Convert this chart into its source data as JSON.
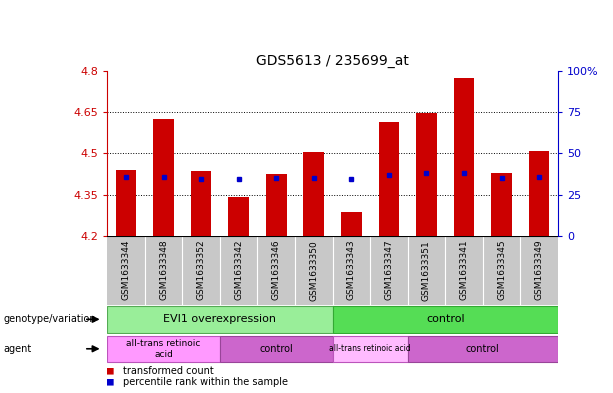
{
  "title": "GDS5613 / 235699_at",
  "samples": [
    "GSM1633344",
    "GSM1633348",
    "GSM1633352",
    "GSM1633342",
    "GSM1633346",
    "GSM1633350",
    "GSM1633343",
    "GSM1633347",
    "GSM1633351",
    "GSM1633341",
    "GSM1633345",
    "GSM1633349"
  ],
  "bar_values": [
    4.44,
    4.625,
    4.435,
    4.34,
    4.425,
    4.505,
    4.285,
    4.615,
    4.645,
    4.775,
    4.43,
    4.51
  ],
  "blue_dot_values": [
    4.415,
    4.415,
    4.405,
    4.405,
    4.41,
    4.41,
    4.405,
    4.42,
    4.43,
    4.43,
    4.41,
    4.415
  ],
  "ymin": 4.2,
  "ymax": 4.8,
  "yticks": [
    4.2,
    4.35,
    4.5,
    4.65,
    4.8
  ],
  "ytick_labels": [
    "4.2",
    "4.35",
    "4.5",
    "4.65",
    "4.8"
  ],
  "y2ticks": [
    0,
    25,
    50,
    75,
    100
  ],
  "y2tick_labels": [
    "0",
    "25",
    "50",
    "75",
    "100%"
  ],
  "bar_color": "#cc0000",
  "dot_color": "#0000cc",
  "bar_width": 0.55,
  "genotype_groups": [
    {
      "label": "EVI1 overexpression",
      "start": 0,
      "end": 5,
      "color": "#99ee99"
    },
    {
      "label": "control",
      "start": 6,
      "end": 11,
      "color": "#55dd55"
    }
  ],
  "agent_groups": [
    {
      "label": "all-trans retinoic\nacid",
      "start": 0,
      "end": 2,
      "color": "#ff99ff"
    },
    {
      "label": "control",
      "start": 3,
      "end": 5,
      "color": "#cc66cc"
    },
    {
      "label": "all-trans retinoic acid",
      "start": 6,
      "end": 7,
      "color": "#ffbbff"
    },
    {
      "label": "control",
      "start": 8,
      "end": 11,
      "color": "#cc66cc"
    }
  ],
  "xlabel_color": "#cc0000",
  "y2label_color": "#0000cc",
  "tick_area_color": "#c8c8c8"
}
